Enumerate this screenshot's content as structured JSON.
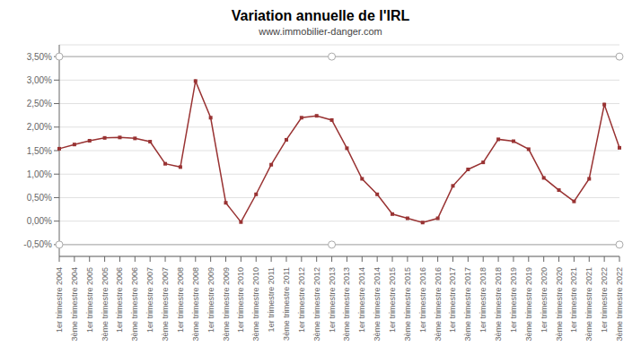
{
  "chart_data": {
    "type": "line",
    "title": "Variation annuelle de l'IRL",
    "subtitle": "www.immobilier-danger.com",
    "categories": [
      "1er trimestre 2004",
      "3ème trimestre 2004",
      "1er trimestre 2005",
      "3ème trimestre 2005",
      "1er trimestre 2006",
      "3ème trimestre 2006",
      "1er trimestre 2007",
      "3ème trimestre 2007",
      "1er trimestre 2008",
      "3ème trimestre 2008",
      "1er trimestre 2009",
      "3ème trimestre 2009",
      "1er trimestre 2010",
      "3ème trimestre 2010",
      "1er trimestre 2011",
      "3ème trimestre 2011",
      "1er trimestre 2012",
      "3ème trimestre 2012",
      "1er trimestre 2013",
      "3ème trimestre 2013",
      "1er trimestre 2014",
      "3ème trimestre 2014",
      "1er trimestre 2015",
      "3ème trimestre 2015",
      "1er trimestre 2016",
      "3ème trimestre 2016",
      "1er trimestre 2017",
      "3ème trimestre 2017",
      "1er trimestre 2018",
      "3ème trimestre 2018",
      "1er trimestre 2019",
      "3ème trimestre 2019",
      "1er trimestre 2020",
      "3ème trimestre 2020",
      "1er trimestre 2021",
      "3ème trimestre 2021",
      "1er trimestre 2022",
      "3ème trimestre 2022"
    ],
    "values": [
      1.54,
      1.63,
      1.71,
      1.77,
      1.78,
      1.76,
      1.69,
      1.22,
      1.15,
      2.98,
      2.2,
      0.39,
      -0.02,
      0.57,
      1.2,
      1.73,
      2.2,
      2.24,
      2.15,
      1.55,
      0.9,
      0.57,
      0.15,
      0.06,
      -0.03,
      0.06,
      0.75,
      1.1,
      1.25,
      1.74,
      1.7,
      1.53,
      0.92,
      0.66,
      0.42,
      0.9,
      2.48,
      1.56
    ],
    "color": "#993333",
    "marker": "square",
    "ylim": [
      -0.75,
      3.75
    ],
    "yticks": [
      {
        "value": -0.5,
        "label": "-0,50%"
      },
      {
        "value": 0.0,
        "label": "0,00%"
      },
      {
        "value": 0.5,
        "label": "0,50%"
      },
      {
        "value": 1.0,
        "label": "1,00%"
      },
      {
        "value": 1.5,
        "label": "1,50%"
      },
      {
        "value": 2.0,
        "label": "2,00%"
      },
      {
        "value": 2.5,
        "label": "2,50%"
      },
      {
        "value": 3.0,
        "label": "3,00%"
      },
      {
        "value": 3.5,
        "label": "3,50%"
      }
    ],
    "grid": true,
    "reference_lines": [
      {
        "y": 3.5,
        "color": "#aaaaaa",
        "markers": [
          "1er trimestre 2004",
          "1er trimestre 2013",
          "3ème trimestre 2022"
        ]
      },
      {
        "y": -0.5,
        "color": "#aaaaaa",
        "markers": [
          "1er trimestre 2004",
          "1er trimestre 2013",
          "3ème trimestre 2022"
        ]
      }
    ]
  }
}
